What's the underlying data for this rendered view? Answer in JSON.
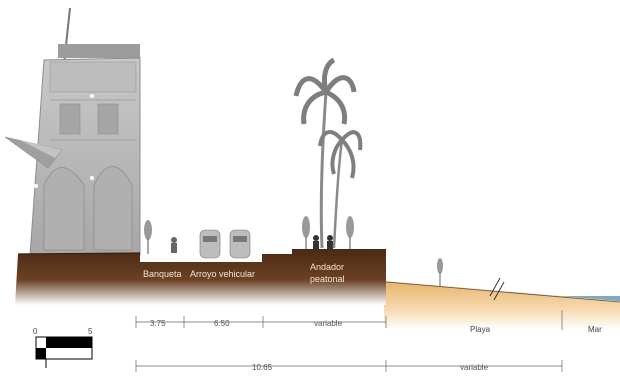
{
  "labels": {
    "banqueta": "Banqueta",
    "arroyo": "Arroyo vehicular",
    "andador_line1": "Andador",
    "andador_line2": "peatonal",
    "playa": "Playa",
    "mar": "Mar"
  },
  "dimensions": {
    "banqueta": "3.75",
    "arroyo": "6.50",
    "andador": "variable",
    "total": "10.65",
    "playa": "variable"
  },
  "scale": {
    "start": "0",
    "end": "5"
  },
  "colors": {
    "ground": "#4a2a12",
    "sand": "#f1c98f",
    "sea": "#7fa8c6",
    "building": "#b3b3b3",
    "palm": "#8a8a8a"
  }
}
